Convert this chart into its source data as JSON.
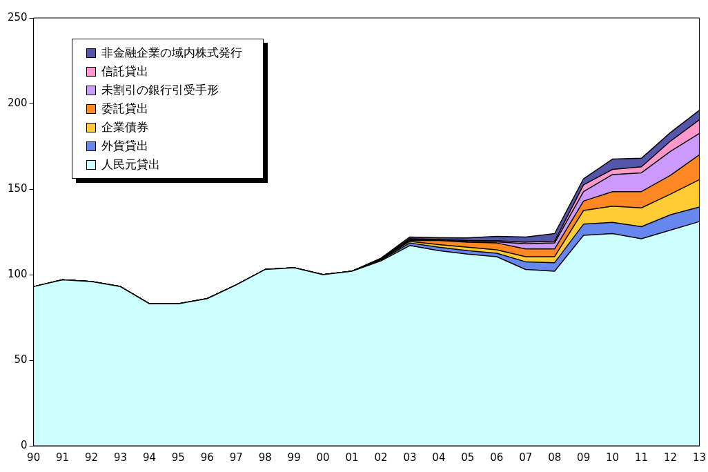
{
  "chart_data": {
    "type": "area",
    "stacked": true,
    "categories": [
      "90",
      "91",
      "92",
      "93",
      "94",
      "95",
      "96",
      "97",
      "98",
      "99",
      "00",
      "01",
      "02",
      "03",
      "04",
      "05",
      "06",
      "07",
      "08",
      "09",
      "10",
      "11",
      "12",
      "13"
    ],
    "ylim": [
      0,
      250
    ],
    "yticks": [
      0,
      50,
      100,
      150,
      200,
      250
    ],
    "grid": false,
    "legend": "top left",
    "series": [
      {
        "name": "人民元貸出",
        "color": "#ccffff",
        "values": [
          93,
          97,
          96,
          93,
          83,
          83,
          86,
          94,
          103,
          104,
          100,
          102,
          108,
          117,
          114,
          112,
          110.5,
          103,
          102,
          123,
          124,
          121,
          126,
          131
        ]
      },
      {
        "name": "外貨貸出",
        "color": "#6688ee",
        "values": [
          0,
          0,
          0,
          0,
          0,
          0,
          0,
          0,
          0,
          0,
          0,
          0,
          0.5,
          1.5,
          2,
          2,
          2,
          4.5,
          5,
          6.5,
          6.5,
          7,
          9,
          8.5
        ]
      },
      {
        "name": "企業債券",
        "color": "#ffcc33",
        "values": [
          0,
          0,
          0,
          0,
          0,
          0,
          0,
          0,
          0,
          0,
          0,
          0,
          0.3,
          1,
          1.5,
          2,
          2,
          3,
          3.5,
          8,
          9.5,
          11,
          12,
          16
        ]
      },
      {
        "name": "委託貸出",
        "color": "#ff8822",
        "values": [
          0,
          0,
          0,
          0,
          0,
          0,
          0,
          0,
          0,
          0,
          0,
          0,
          0.2,
          0.5,
          2.5,
          3,
          4,
          4.5,
          4.5,
          5.5,
          8.5,
          9.5,
          11,
          14.5
        ]
      },
      {
        "name": "未割引の銀行引受手形",
        "color": "#cc99ff",
        "values": [
          0,
          0,
          0,
          0,
          0,
          0,
          0,
          0,
          0,
          0,
          0,
          0,
          0.3,
          0.5,
          0.3,
          0.5,
          0.7,
          3,
          3.5,
          5.5,
          10,
          11,
          14,
          12.5
        ]
      },
      {
        "name": "信託貸出",
        "color": "#ff99cc",
        "values": [
          0,
          0,
          0,
          0,
          0,
          0,
          0,
          0,
          0,
          0,
          0,
          0,
          0,
          0.5,
          0.3,
          0.5,
          0.7,
          1,
          1,
          4,
          3,
          3.5,
          6,
          8
        ]
      },
      {
        "name": "非金融企業の域内株式発行",
        "color": "#5555aa",
        "values": [
          0,
          0,
          0,
          0,
          0,
          0,
          0,
          0,
          0,
          0,
          0,
          0,
          0.3,
          1,
          1,
          1.5,
          2.5,
          3,
          4.5,
          3.5,
          6,
          5,
          5,
          5.5
        ]
      }
    ]
  }
}
